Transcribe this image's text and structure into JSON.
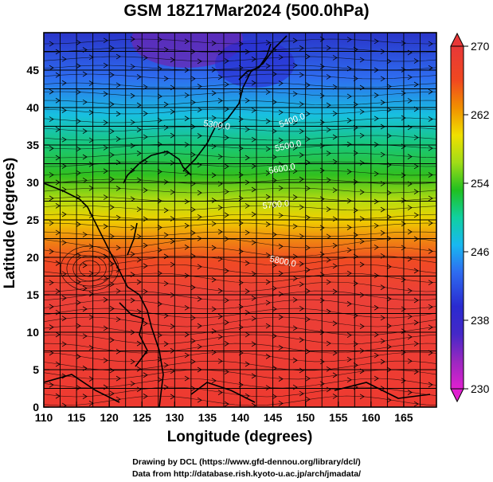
{
  "title": "GSM 18Z17Mar2024 (500.0hPa)",
  "x_axis": {
    "label": "Longitude (degrees)",
    "range": [
      110,
      170
    ],
    "ticks": [
      "110",
      "115",
      "120",
      "125",
      "130",
      "135",
      "140",
      "145",
      "150",
      "155",
      "160",
      "165"
    ]
  },
  "y_axis": {
    "label": "Latitude  (degrees)",
    "range": [
      0,
      50
    ],
    "ticks": [
      "0",
      "5",
      "10",
      "15",
      "20",
      "25",
      "30",
      "35",
      "40",
      "45"
    ]
  },
  "colorbar": {
    "range": [
      230,
      270
    ],
    "ticks": [
      "230",
      "238",
      "246",
      "254",
      "262",
      "270"
    ],
    "palette": [
      "#e020d0",
      "#7a2ab8",
      "#2a2ad0",
      "#2e6cf0",
      "#18b8f0",
      "#10d090",
      "#20c020",
      "#a0dc18",
      "#f0e000",
      "#f09000",
      "#f04020",
      "#e83838"
    ]
  },
  "contours": {
    "color": "#ffffff",
    "labels": [
      "5300.0",
      "5400.0",
      "5500.0",
      "5600.0",
      "5700.0",
      "5800.0"
    ]
  },
  "credits": [
    "Drawing by DCL (https://www.gfd-dennou.org/library/dcl/)",
    "Data from http://database.rish.kyoto-u.ac.jp/arch/jmadata/"
  ]
}
